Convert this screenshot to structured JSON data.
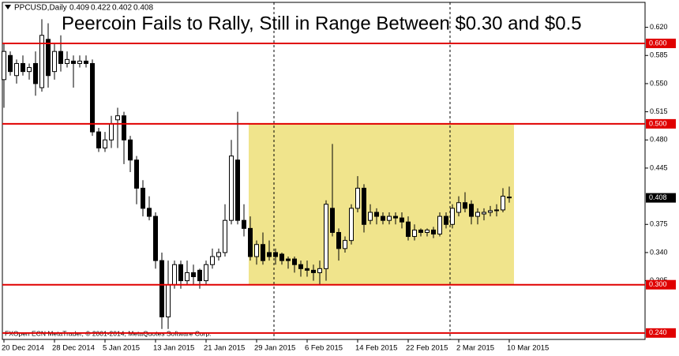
{
  "chart_data": {
    "type": "candlestick",
    "symbol": "PPCUSD,Daily",
    "title": "Peercoin Fails to Rally, Still in Range Between $0.30 and $0.5",
    "footer": "FXOpen ECN MetaTrader, © 2001-2014, MetaQuotes Software Corp.",
    "categories": [
      "20 Dec 2014",
      null,
      null,
      null,
      null,
      null,
      null,
      null,
      "28 Dec 2014",
      null,
      null,
      null,
      null,
      null,
      null,
      null,
      "5 Jan 2015",
      null,
      null,
      null,
      null,
      null,
      null,
      null,
      "13 Jan 2015",
      null,
      null,
      null,
      null,
      null,
      null,
      null,
      "21 Jan 2015",
      null,
      null,
      null,
      null,
      null,
      null,
      null,
      "29 Jan 2015",
      null,
      null,
      null,
      null,
      null,
      null,
      null,
      "6 Feb 2015",
      null,
      null,
      null,
      null,
      null,
      null,
      null,
      "14 Feb 2015",
      null,
      null,
      null,
      null,
      null,
      null,
      null,
      "22 Feb 2015",
      null,
      null,
      null,
      null,
      null,
      null,
      null,
      "2 Mar 2015",
      null,
      null,
      null,
      null,
      null,
      null,
      null,
      "10 Mar 2015"
    ],
    "open": [
      0.555,
      0.585,
      0.56,
      0.575,
      0.565,
      0.575,
      0.545,
      0.605,
      0.565,
      0.59,
      0.575,
      0.578,
      0.575,
      0.578,
      0.575,
      0.49,
      0.47,
      0.48,
      0.505,
      0.51,
      0.48,
      0.455,
      0.42,
      0.395,
      0.385,
      0.33,
      0.26,
      0.3,
      0.325,
      0.305,
      0.315,
      0.318,
      0.305,
      0.325,
      0.335,
      0.34,
      0.38,
      0.455,
      0.38,
      0.37,
      0.335,
      0.35,
      0.34,
      0.34,
      0.338,
      0.332,
      0.332,
      0.325,
      0.32,
      0.318,
      0.315,
      0.32,
      0.395,
      0.365,
      0.345,
      0.355,
      0.395,
      0.42,
      0.38,
      0.39,
      0.385,
      0.38,
      0.385,
      0.383,
      0.378,
      0.36,
      0.368,
      0.365,
      0.368,
      0.363,
      0.385,
      0.375,
      0.39,
      0.402,
      0.4,
      0.385,
      0.388,
      0.39,
      0.392,
      0.393,
      0.409
    ],
    "high": [
      0.6,
      0.59,
      0.58,
      0.585,
      0.575,
      0.59,
      0.63,
      0.625,
      0.6,
      0.61,
      0.59,
      0.585,
      0.585,
      0.585,
      0.58,
      0.495,
      0.49,
      0.51,
      0.52,
      0.515,
      0.485,
      0.46,
      0.43,
      0.41,
      0.39,
      0.34,
      0.33,
      0.33,
      0.33,
      0.33,
      0.325,
      0.32,
      0.33,
      0.345,
      0.345,
      0.4,
      0.48,
      0.515,
      0.4,
      0.385,
      0.355,
      0.365,
      0.355,
      0.345,
      0.34,
      0.335,
      0.335,
      0.33,
      0.33,
      0.325,
      0.33,
      0.405,
      0.475,
      0.37,
      0.36,
      0.4,
      0.435,
      0.425,
      0.4,
      0.395,
      0.39,
      0.39,
      0.39,
      0.39,
      0.385,
      0.375,
      0.37,
      0.37,
      0.372,
      0.39,
      0.39,
      0.4,
      0.41,
      0.415,
      0.405,
      0.395,
      0.395,
      0.398,
      0.4,
      0.42,
      0.422
    ],
    "low": [
      0.52,
      0.56,
      0.55,
      0.56,
      0.555,
      0.535,
      0.54,
      0.545,
      0.555,
      0.565,
      0.57,
      0.545,
      0.57,
      0.57,
      0.485,
      0.465,
      0.465,
      0.47,
      0.47,
      0.45,
      0.44,
      0.4,
      0.385,
      0.38,
      0.32,
      0.245,
      0.245,
      0.295,
      0.295,
      0.3,
      0.3,
      0.295,
      0.3,
      0.32,
      0.33,
      0.335,
      0.375,
      0.375,
      0.36,
      0.33,
      0.325,
      0.325,
      0.33,
      0.325,
      0.325,
      0.32,
      0.315,
      0.31,
      0.31,
      0.305,
      0.3,
      0.305,
      0.36,
      0.33,
      0.34,
      0.35,
      0.39,
      0.365,
      0.375,
      0.375,
      0.375,
      0.375,
      0.375,
      0.37,
      0.355,
      0.355,
      0.36,
      0.36,
      0.358,
      0.36,
      0.37,
      0.37,
      0.385,
      0.39,
      0.375,
      0.375,
      0.38,
      0.385,
      0.385,
      0.39,
      0.402
    ],
    "close": [
      0.59,
      0.565,
      0.575,
      0.565,
      0.57,
      0.55,
      0.61,
      0.56,
      0.59,
      0.575,
      0.58,
      0.575,
      0.578,
      0.575,
      0.49,
      0.47,
      0.48,
      0.5,
      0.51,
      0.48,
      0.455,
      0.42,
      0.395,
      0.385,
      0.33,
      0.26,
      0.3,
      0.325,
      0.305,
      0.315,
      0.31,
      0.305,
      0.325,
      0.335,
      0.34,
      0.38,
      0.46,
      0.38,
      0.37,
      0.335,
      0.35,
      0.33,
      0.335,
      0.335,
      0.33,
      0.33,
      0.325,
      0.32,
      0.318,
      0.315,
      0.32,
      0.4,
      0.365,
      0.345,
      0.355,
      0.395,
      0.42,
      0.375,
      0.39,
      0.385,
      0.38,
      0.385,
      0.383,
      0.378,
      0.36,
      0.368,
      0.365,
      0.368,
      0.363,
      0.385,
      0.375,
      0.395,
      0.402,
      0.395,
      0.385,
      0.39,
      0.39,
      0.392,
      0.393,
      0.41,
      0.408
    ],
    "ylim": [
      0.232,
      0.651
    ],
    "yticks": [
      {
        "value": 0.62,
        "label": "0.620"
      },
      {
        "value": 0.585,
        "label": "0.585"
      },
      {
        "value": 0.55,
        "label": "0.550"
      },
      {
        "value": 0.515,
        "label": "0.515"
      },
      {
        "value": 0.48,
        "label": "0.480"
      },
      {
        "value": 0.445,
        "label": "0.445"
      },
      {
        "value": 0.375,
        "label": "0.375"
      },
      {
        "value": 0.34,
        "label": "0.340"
      },
      {
        "value": 0.305,
        "label": "0.305"
      }
    ],
    "levels": [
      {
        "value": 0.6,
        "label": "0.600"
      },
      {
        "value": 0.5,
        "label": "0.500"
      },
      {
        "value": 0.3,
        "label": "0.300"
      },
      {
        "value": 0.24,
        "label": "0.240"
      }
    ],
    "level_color": "#e00000",
    "range_color": "#f0e48c",
    "up_color": "#ffffff",
    "down_color": "#000000"
  }
}
